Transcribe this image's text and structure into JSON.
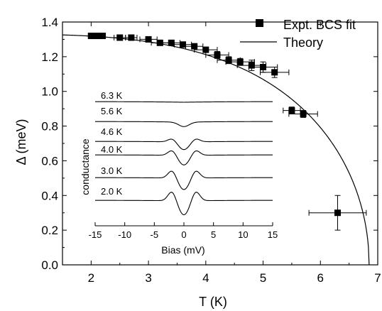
{
  "chart_data": [
    {
      "type": "scatter",
      "xlabel": "T (K)",
      "ylabel": "Δ (meV)",
      "xlim": [
        1.5,
        7
      ],
      "ylim": [
        0,
        1.4
      ],
      "xticks": [
        2,
        3,
        4,
        5,
        6,
        7
      ],
      "yticks": [
        0.0,
        0.2,
        0.4,
        0.6,
        0.8,
        1.0,
        1.2,
        1.4
      ],
      "xtick_labels": [
        "2",
        "3",
        "4",
        "5",
        "6",
        "7"
      ],
      "ytick_labels": [
        "0.0",
        "0.2",
        "0.4",
        "0.6",
        "0.8",
        "1.0",
        "1.2",
        "1.4"
      ],
      "legend": {
        "position": "top-right",
        "entries": [
          "Expt. BCS fit",
          "Theory"
        ]
      },
      "series": [
        {
          "name": "Expt. BCS fit",
          "marker": "square",
          "x": [
            2.0,
            2.1,
            2.2,
            2.5,
            2.7,
            3.0,
            3.2,
            3.4,
            3.6,
            3.8,
            4.0,
            4.2,
            4.4,
            4.6,
            4.8,
            5.0,
            5.2,
            5.5,
            5.7,
            6.3
          ],
          "y": [
            1.32,
            1.32,
            1.32,
            1.31,
            1.31,
            1.3,
            1.28,
            1.28,
            1.27,
            1.26,
            1.24,
            1.21,
            1.18,
            1.17,
            1.15,
            1.14,
            1.11,
            0.89,
            0.87,
            0.3
          ],
          "x_err": [
            0.05,
            0.05,
            0.05,
            0.1,
            0.1,
            0.15,
            0.15,
            0.15,
            0.15,
            0.15,
            0.2,
            0.2,
            0.2,
            0.25,
            0.25,
            0.25,
            0.25,
            0.15,
            0.25,
            0.5
          ],
          "y_err": [
            0.0,
            0.0,
            0.0,
            0.0,
            0.0,
            0.0,
            0.0,
            0.0,
            0.0,
            0.0,
            0.0,
            0.02,
            0.02,
            0.02,
            0.03,
            0.03,
            0.03,
            0.02,
            0.02,
            0.1
          ]
        },
        {
          "name": "Theory",
          "style": "line",
          "model": "BCS gap",
          "delta0": 1.33,
          "tc": 6.85
        }
      ]
    },
    {
      "type": "line",
      "role": "inset",
      "xlabel": "Bias (mV)",
      "ylabel": "conductance",
      "xlim": [
        -15,
        15
      ],
      "xticks": [
        -15,
        -10,
        -5,
        0,
        5,
        10,
        15
      ],
      "xtick_labels": [
        "-15",
        "-10",
        "-5",
        "0",
        "5",
        "10",
        "15"
      ],
      "series": [
        {
          "name": "6.3 K",
          "depth": 0.0,
          "peak": 0.0
        },
        {
          "name": "5.6 K",
          "depth": 0.35,
          "peak": 0.0
        },
        {
          "name": "4.6 K",
          "depth": 0.6,
          "peak": 0.25
        },
        {
          "name": "4.0 K",
          "depth": 0.75,
          "peak": 0.4
        },
        {
          "name": "3.0 K",
          "depth": 0.9,
          "peak": 0.6
        },
        {
          "name": "2.0 K",
          "depth": 1.1,
          "peak": 0.75
        }
      ]
    }
  ]
}
